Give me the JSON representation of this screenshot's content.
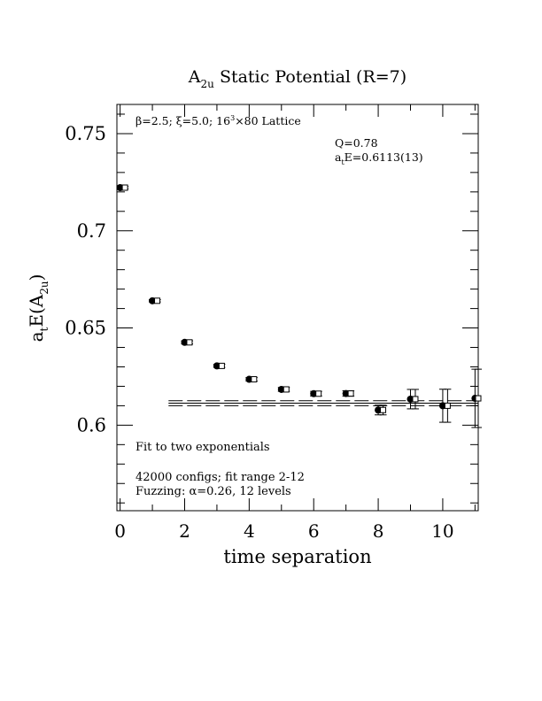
{
  "chart_data": {
    "type": "scatter",
    "title_main": "A",
    "title_sub": "2u",
    "title_rest": " Static Potential (R=7)",
    "xlabel": "time separation",
    "ylabel_a": "a",
    "ylabel_t": "t",
    "ylabel_e": "E(A",
    "ylabel_sub": "2u",
    "ylabel_close": ")",
    "xlim": [
      -0.1,
      11.1
    ],
    "ylim": [
      0.556,
      0.765
    ],
    "xticks": [
      0,
      2,
      4,
      6,
      8,
      10
    ],
    "xtick_labels": [
      "0",
      "2",
      "4",
      "6",
      "8",
      "10"
    ],
    "yticks": [
      0.6,
      0.65,
      0.7,
      0.75
    ],
    "ytick_labels": [
      "0.6",
      "0.65",
      "0.7",
      "0.75"
    ],
    "annotations": {
      "lattice_beta": "β=2.5; ξ=5.0; 16",
      "lattice_sup": "3",
      "lattice_rest": "×80 Lattice",
      "q": "Q=0.78",
      "fit_a": "a",
      "fit_t": "t",
      "fit_e": "E=0.6113(13)",
      "fit_label": "Fit to two exponentials",
      "configs": "42000 configs; fit range 2-12",
      "fuzzing": "Fuzzing: α=0.26, 12 levels"
    },
    "series": [
      {
        "marker": "filled-circle",
        "points": [
          {
            "x": 0,
            "y": 0.7222,
            "err": 0.0006
          },
          {
            "x": 1,
            "y": 0.664,
            "err": 0.0006
          },
          {
            "x": 2,
            "y": 0.6426,
            "err": 0.0008
          },
          {
            "x": 3,
            "y": 0.6305,
            "err": 0.0008
          },
          {
            "x": 4,
            "y": 0.6236,
            "err": 0.0009
          },
          {
            "x": 5,
            "y": 0.6184,
            "err": 0.001
          },
          {
            "x": 6,
            "y": 0.6162,
            "err": 0.0012
          },
          {
            "x": 7,
            "y": 0.6163,
            "err": 0.0014
          },
          {
            "x": 8,
            "y": 0.6078,
            "err": 0.0025
          },
          {
            "x": 9,
            "y": 0.6134,
            "err": 0.005
          },
          {
            "x": 10,
            "y": 0.61,
            "err": 0.0085
          },
          {
            "x": 11,
            "y": 0.6138,
            "err": 0.015
          }
        ]
      },
      {
        "marker": "open-square",
        "points": [
          {
            "x": 0.15,
            "y": 0.7222,
            "err": 0.0006
          },
          {
            "x": 1.15,
            "y": 0.664,
            "err": 0.0006
          },
          {
            "x": 2.15,
            "y": 0.6426,
            "err": 0.0008
          },
          {
            "x": 3.15,
            "y": 0.6305,
            "err": 0.0008
          },
          {
            "x": 4.15,
            "y": 0.6236,
            "err": 0.0009
          },
          {
            "x": 5.15,
            "y": 0.6184,
            "err": 0.001
          },
          {
            "x": 6.15,
            "y": 0.6162,
            "err": 0.0012
          },
          {
            "x": 7.15,
            "y": 0.6163,
            "err": 0.0014
          },
          {
            "x": 8.15,
            "y": 0.6078,
            "err": 0.0025
          },
          {
            "x": 9.15,
            "y": 0.6134,
            "err": 0.005
          },
          {
            "x": 10.15,
            "y": 0.61,
            "err": 0.0085
          },
          {
            "x": 11.1,
            "y": 0.6138,
            "err": 0.015
          }
        ]
      }
    ],
    "fit": {
      "x_start": 1.5,
      "x_end": 11.1,
      "value": 0.6113,
      "error": 0.0013
    }
  }
}
